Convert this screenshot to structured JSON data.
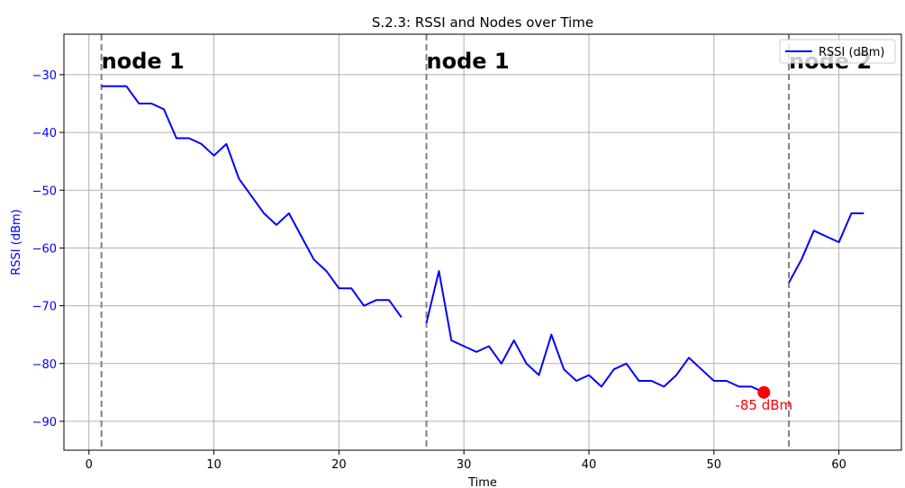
{
  "chart_data": {
    "type": "line",
    "title": "S.2.3: RSSI and Nodes over Time",
    "xlabel": "Time",
    "ylabel": "RSSI (dBm)",
    "xlim": [
      -2,
      65
    ],
    "ylim": [
      -95,
      -23
    ],
    "xticks": [
      0,
      10,
      20,
      30,
      40,
      50,
      60
    ],
    "yticks": [
      -90,
      -80,
      -70,
      -60,
      -50,
      -40,
      -30
    ],
    "grid": true,
    "legend_position": "top-right",
    "series": [
      {
        "name": "RSSI (dBm)",
        "color": "#0000ff",
        "segments": [
          {
            "x": [
              1,
              2,
              3,
              4,
              5,
              6,
              7,
              8,
              9,
              10,
              11,
              12,
              13,
              14,
              15,
              16,
              17,
              18,
              19,
              20,
              21,
              22,
              23,
              24,
              25
            ],
            "y": [
              -32,
              -32,
              -32,
              -35,
              -35,
              -36,
              -41,
              -41,
              -42,
              -44,
              -42,
              -48,
              -51,
              -54,
              -56,
              -54,
              -58,
              -62,
              -64,
              -67,
              -67,
              -70,
              -69,
              -69,
              -72
            ]
          },
          {
            "x": [
              27,
              28,
              29,
              30,
              31,
              32,
              33,
              34,
              35,
              36,
              37,
              38,
              39,
              40,
              41,
              42,
              43,
              44,
              45,
              46,
              47,
              48,
              49,
              50,
              51,
              52,
              53,
              54
            ],
            "y": [
              -73,
              -64,
              -76,
              -77,
              -78,
              -77,
              -80,
              -76,
              -80,
              -82,
              -75,
              -81,
              -83,
              -82,
              -84,
              -81,
              -80,
              -83,
              -83,
              -84,
              -82,
              -79,
              -81,
              -83,
              -83,
              -84,
              -84,
              -85
            ]
          },
          {
            "x": [
              56,
              57,
              58,
              59,
              60,
              61,
              62
            ],
            "y": [
              -66,
              -62,
              -57,
              -58,
              -59,
              -54,
              -54
            ]
          }
        ]
      }
    ],
    "node_markers": [
      {
        "x": 1,
        "label": "node 1"
      },
      {
        "x": 27,
        "label": "node 1"
      },
      {
        "x": 56,
        "label": "node 2"
      }
    ],
    "highlight_point": {
      "x": 54,
      "y": -85,
      "label": "-85 dBm",
      "color": "#ff0000"
    },
    "colors": {
      "axis_ylabel": "#0000ff",
      "node_line": "#808080",
      "grid": "#b0b0b0"
    }
  }
}
